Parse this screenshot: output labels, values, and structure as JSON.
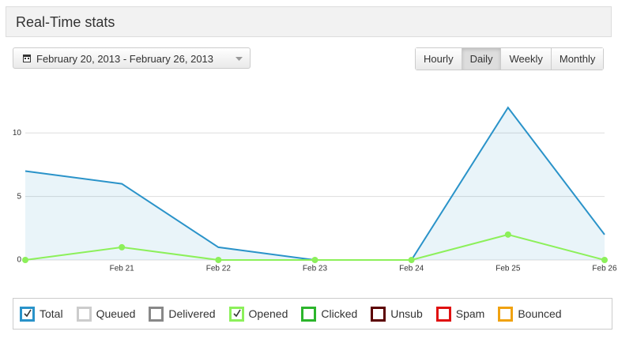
{
  "header": {
    "title": "Real-Time stats"
  },
  "date_range": "February 20, 2013 - February 26, 2013",
  "range_buttons": [
    {
      "label": "Hourly",
      "active": false
    },
    {
      "label": "Daily",
      "active": true
    },
    {
      "label": "Weekly",
      "active": false
    },
    {
      "label": "Monthly",
      "active": false
    }
  ],
  "chart_data": {
    "type": "line",
    "categories": [
      null,
      "Feb 21",
      "Feb 22",
      "Feb 23",
      "Feb 24",
      "Feb 25",
      "Feb 26"
    ],
    "series": [
      {
        "name": "Total",
        "color": "#2a93c9",
        "checked": true,
        "area": true,
        "markers": false,
        "values": [
          7,
          6,
          1,
          0,
          0,
          12,
          2
        ]
      },
      {
        "name": "Queued",
        "color": "#cccccc",
        "checked": false
      },
      {
        "name": "Delivered",
        "color": "#888888",
        "checked": false
      },
      {
        "name": "Opened",
        "color": "#8cf05a",
        "checked": true,
        "area": false,
        "markers": true,
        "values": [
          0,
          1,
          0,
          0,
          0,
          2,
          0
        ]
      },
      {
        "name": "Clicked",
        "color": "#2cb52c",
        "checked": false
      },
      {
        "name": "Unsub",
        "color": "#5c0000",
        "checked": false
      },
      {
        "name": "Spam",
        "color": "#e01010",
        "checked": false
      },
      {
        "name": "Bounced",
        "color": "#f0a210",
        "checked": false
      }
    ],
    "ylim": [
      0,
      14
    ],
    "yticks": [
      0,
      5,
      10
    ],
    "grid": true
  }
}
